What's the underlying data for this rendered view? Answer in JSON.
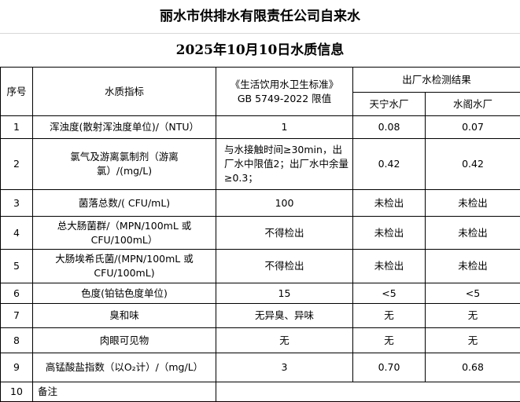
{
  "title": "丽水市供排水有限责任公司自来水",
  "subtitle": "2025年10月10日水质信息",
  "headers": {
    "no": "序号",
    "indicator": "水质指标",
    "standard_line1": "《生活饮用水卫生标准》",
    "standard_line2": "GB 5749-2022 限值",
    "results": "出厂水检测结果",
    "plant1": "天宁水厂",
    "plant2": "水阁水厂"
  },
  "rows": [
    {
      "no": "1",
      "indicator": "浑浊度(散射浑浊度单位)/（NTU）",
      "limit": "1",
      "plant1": "0.08",
      "plant2": "0.07"
    },
    {
      "no": "2",
      "indicator": "氯气及游离氯制剂（游离氯）/(mg/L)",
      "limit": "与水接触时间≥30min，出厂水中限值2；出厂水中余量≥0.3；",
      "plant1": "0.42",
      "plant2": "0.42"
    },
    {
      "no": "3",
      "indicator": "菌落总数/( CFU/mL)",
      "limit": "100",
      "plant1": "未检出",
      "plant2": "未检出"
    },
    {
      "no": "4",
      "indicator": "总大肠菌群/（MPN/100mL 或 CFU/100mL）",
      "limit": "不得检出",
      "plant1": "未检出",
      "plant2": "未检出"
    },
    {
      "no": "5",
      "indicator": "大肠埃希氏菌/(MPN/100mL 或 CFU/100mL)",
      "limit": "不得检出",
      "plant1": "未检出",
      "plant2": "未检出"
    },
    {
      "no": "6",
      "indicator": "色度(铂钴色度单位)",
      "limit": "15",
      "plant1": "<5",
      "plant2": "<5"
    },
    {
      "no": "7",
      "indicator": "臭和味",
      "limit": "无异臭、异味",
      "plant1": "无",
      "plant2": "无"
    },
    {
      "no": "8",
      "indicator": "肉眼可见物",
      "limit": "无",
      "plant1": "无",
      "plant2": "无"
    },
    {
      "no": "9",
      "indicator": "高锰酸盐指数（以O₂计）/（mg/L）",
      "limit": "3",
      "plant1": "0.70",
      "plant2": "0.68"
    }
  ],
  "remarks": {
    "no": "10",
    "label": "备注",
    "value": ""
  }
}
